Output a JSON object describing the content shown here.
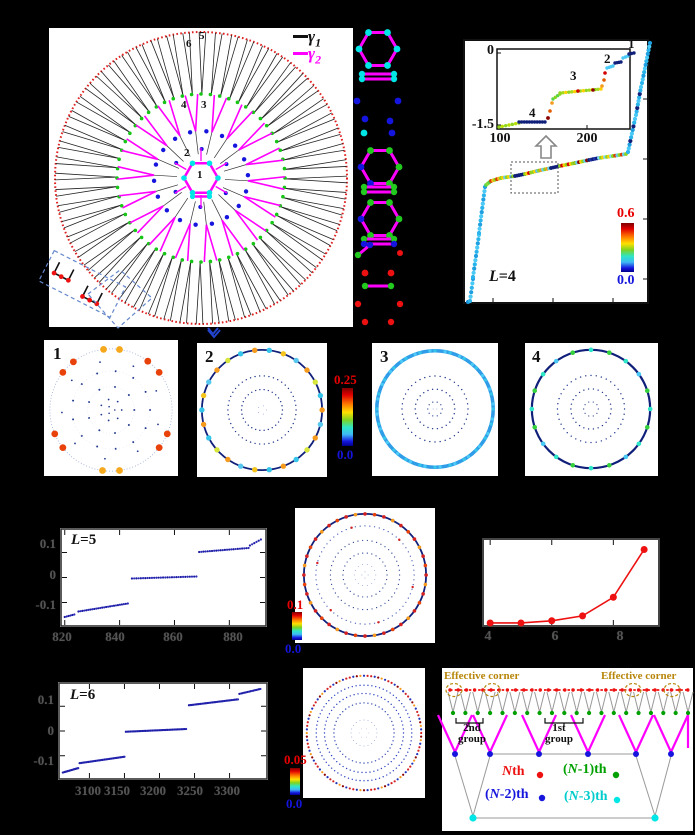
{
  "colors": {
    "background": "#000000",
    "panel_background": "#ffffff",
    "gamma1": "#111111",
    "gamma2": "#ff00ff",
    "outer_ring_red": "#e02020",
    "ring_green": "#17c517",
    "site_blue": "#1515dd",
    "site_cyan": "#00e5e5",
    "jet_top_label": "#e80000",
    "jet_bottom_label": "#1515dd",
    "effective_corner_olive": "#b8860b",
    "spectrum_dot_navy": "#1a1aa0",
    "scaling_curve_red": "#ee1111"
  },
  "panel_a": {
    "ring_numbers": [
      "1",
      "2",
      "3",
      "4",
      "5",
      "6"
    ],
    "legend": [
      {
        "sym": "γ",
        "sub": "1",
        "color": "#111111"
      },
      {
        "sym": "γ",
        "sub": "2",
        "color": "#ff00ff"
      }
    ]
  },
  "panel_b": {
    "l_sym": "L",
    "l_rest": "=4",
    "colorbar": {
      "max": "0.6",
      "min": "0.0"
    },
    "inset": {
      "ytick_top": "0",
      "ytick_bottom": "-1.5",
      "xtick_1": "100",
      "xtick_2": "200",
      "ann": [
        "1",
        "2",
        "3",
        "4"
      ]
    }
  },
  "panel_c": {
    "labels": [
      "1",
      "2",
      "3",
      "4"
    ],
    "colorbar": {
      "max": "0.25",
      "min": "0.0"
    }
  },
  "panel_d": {
    "l_sym": "L",
    "l_rest": "=5",
    "yticks": [
      "0.1",
      "0",
      "-0.1"
    ],
    "xticks": [
      "820",
      "840",
      "860",
      "880"
    ]
  },
  "panel_e": {
    "colorbar": {
      "max": "0.1",
      "min": "0.0"
    }
  },
  "panel_f": {
    "xticks": [
      "4",
      "6",
      "8"
    ]
  },
  "panel_g": {
    "l_sym": "L",
    "l_rest": "=6",
    "yticks": [
      "0.1",
      "0",
      "-0.1"
    ],
    "xticks": [
      "3100",
      "3150",
      "3200",
      "3250",
      "3300"
    ]
  },
  "panel_h": {
    "colorbar": {
      "max": "0.05",
      "min": "0.0"
    }
  },
  "panel_i": {
    "corner_left": "Effective corner",
    "corner_right": "Effective corner",
    "group2": "2nd\ngroup",
    "group1": "1st\ngroup",
    "legend": [
      {
        "pre": "",
        "sym": "N",
        "rest": "th",
        "color": "#ee1111"
      },
      {
        "pre": "(",
        "sym": "N",
        "rest": "-1)th",
        "color": "#00a000"
      },
      {
        "pre": "(",
        "sym": "N",
        "rest": "-2)th",
        "color": "#1515dd"
      },
      {
        "pre": "(",
        "sym": "N",
        "rest": "-3)th",
        "color": "#00cccc"
      }
    ]
  },
  "chart_data": {
    "panel_b_spectrum": {
      "type": "scatter",
      "label": "L=4",
      "colorbar_range": [
        0.0,
        0.6
      ],
      "main_segments_index_energy": [
        {
          "n": [
            40,
            68
          ],
          "E": [
            -3.2,
            -1.55
          ]
        },
        {
          "n": [
            70,
            235
          ],
          "E": [
            -1.5,
            -0.05
          ]
        },
        {
          "n": [
            236,
            254
          ],
          "E": [
            0.0,
            0.5
          ]
        }
      ],
      "inset": {
        "xlim": [
          95,
          255
        ],
        "ylim": [
          -1.6,
          0.1
        ],
        "xticks": [
          100,
          200
        ],
        "yticks": [
          0,
          -1.5
        ],
        "plateaus": [
          {
            "label": "4",
            "n": [
              128,
              158
            ],
            "E": -1.45
          },
          {
            "label": "3",
            "n": [
              165,
              215
            ],
            "E": -0.75
          },
          {
            "label": "2",
            "n": [
              225,
              235
            ],
            "E": -0.12
          },
          {
            "label": "1",
            "n": [
              245,
              252
            ],
            "E": 0.0
          }
        ]
      }
    },
    "panel_d_spectrum": {
      "type": "scatter",
      "label": "L=5",
      "xlim": [
        819,
        893
      ],
      "ylim": [
        -0.19,
        0.19
      ],
      "xticks": [
        820,
        840,
        860,
        880
      ],
      "yticks": [
        0.1,
        0,
        -0.1
      ],
      "segments": [
        {
          "x": [
            820,
            823.5
          ],
          "y": [
            -0.158,
            -0.148
          ],
          "n": 6
        },
        {
          "x": [
            825,
            843
          ],
          "y": [
            -0.136,
            -0.104
          ],
          "n": 26
        },
        {
          "x": [
            844.5,
            868
          ],
          "y": [
            -0.004,
            0.004
          ],
          "n": 30
        },
        {
          "x": [
            869,
            887
          ],
          "y": [
            0.102,
            0.118
          ],
          "n": 24
        },
        {
          "x": [
            887.5,
            891.5
          ],
          "y": [
            0.128,
            0.152
          ],
          "n": 6
        }
      ]
    },
    "panel_f_scaling": {
      "type": "line",
      "x": [
        4,
        5,
        6,
        7,
        8,
        9
      ],
      "y_relative": [
        0.013,
        0.013,
        0.04,
        0.1,
        0.33,
        0.92
      ],
      "xlim": [
        3.8,
        9.45
      ],
      "xticks": [
        4,
        6,
        8
      ]
    },
    "panel_g_spectrum": {
      "type": "scatter",
      "label": "L=6",
      "xlim": [
        3058,
        3352
      ],
      "ylim": [
        -0.19,
        0.19
      ],
      "xticks": [
        3100,
        3150,
        3200,
        3250,
        3300
      ],
      "yticks": [
        0.1,
        0,
        -0.1
      ],
      "segments": [
        {
          "x": [
            3062,
            3084
          ],
          "y": [
            -0.168,
            -0.15
          ],
          "n": 18
        },
        {
          "x": [
            3086,
            3150
          ],
          "y": [
            -0.13,
            -0.104
          ],
          "n": 40
        },
        {
          "x": [
            3152,
            3238
          ],
          "y": [
            -0.003,
            0.008
          ],
          "n": 50
        },
        {
          "x": [
            3242,
            3312
          ],
          "y": [
            0.104,
            0.128
          ],
          "n": 42
        },
        {
          "x": [
            3314,
            3344
          ],
          "y": [
            0.15,
            0.17
          ],
          "n": 16
        }
      ]
    },
    "density_panels": [
      {
        "id": "c1",
        "label": "1",
        "colorbar_max": 0.25,
        "feature": "12 corner-localized red/orange blobs on outer ring"
      },
      {
        "id": "c2",
        "label": "2",
        "colorbar_max": 0.25,
        "feature": "outer edge ring with orange/cyan/yellow sites"
      },
      {
        "id": "c3",
        "label": "3",
        "colorbar_max": 0.25,
        "feature": "uniform light-blue outer edge ring"
      },
      {
        "id": "c4",
        "label": "4",
        "colorbar_max": 0.25,
        "feature": "outer ring with cyan/green sites"
      },
      {
        "id": "e",
        "colorbar_max": 0.1,
        "feature": "outer ring with red sites, L=5"
      },
      {
        "id": "h",
        "colorbar_max": 0.05,
        "feature": "outer ring dense red/blue sites, L=6"
      }
    ]
  }
}
